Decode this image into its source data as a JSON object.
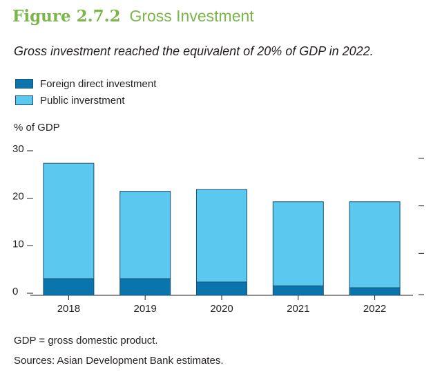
{
  "figure": {
    "number": "Figure 2.7.2",
    "title": "Gross Investment",
    "subtitle": "Gross investment reached the equivalent of 20% of GDP in 2022."
  },
  "colors": {
    "title": "#7ab648",
    "foreign_direct_investment": "#0a75ad",
    "public_investment": "#5bc8ef",
    "bar_outline": "#1d4f6e"
  },
  "chart_data": {
    "type": "bar",
    "stacked": true,
    "categories": [
      "2018",
      "2019",
      "2020",
      "2021",
      "2022"
    ],
    "series": [
      {
        "name": "Foreign direct investment",
        "values": [
          3.5,
          3.5,
          2.8,
          2.0,
          1.6
        ]
      },
      {
        "name": "Public inverstment",
        "values": [
          24.3,
          18.4,
          19.5,
          17.7,
          18.1
        ]
      }
    ],
    "ylabel": "% of GDP",
    "ylim": [
      0,
      30
    ],
    "yticks": [
      "0",
      "10",
      "20",
      "30"
    ],
    "grid": false,
    "legend_position": "top-left"
  },
  "notes": {
    "abbreviation": "GDP = gross domestic product.",
    "source": "Sources: Asian Development Bank estimates."
  }
}
